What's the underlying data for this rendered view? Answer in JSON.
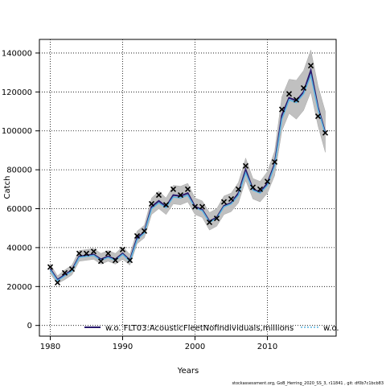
{
  "chart_data": {
    "type": "line",
    "title": "",
    "xlabel": "Years",
    "ylabel": "Catch",
    "xlim": [
      1978.5,
      2019.5
    ],
    "ylim": [
      -5500,
      147000
    ],
    "x_ticks": [
      1980,
      1990,
      2000,
      2010
    ],
    "y_ticks": [
      0,
      20000,
      40000,
      60000,
      80000,
      100000,
      120000,
      140000
    ],
    "grid": true,
    "legend_position": "bottom",
    "colors": {
      "band": "#c0c0c0",
      "fit_primary": "#2a1a6e",
      "fit_secondary": "#5ab4e0",
      "observed": "#000000"
    },
    "x": [
      1980,
      1981,
      1982,
      1983,
      1984,
      1985,
      1986,
      1987,
      1988,
      1989,
      1990,
      1991,
      1992,
      1993,
      1994,
      1995,
      1996,
      1997,
      1998,
      1999,
      2000,
      2001,
      2002,
      2003,
      2004,
      2005,
      2006,
      2007,
      2008,
      2009,
      2010,
      2011,
      2012,
      2013,
      2014,
      2015,
      2016,
      2017,
      2018
    ],
    "observed": [
      30000,
      22000,
      27000,
      29000,
      37000,
      37000,
      38000,
      33000,
      37000,
      33500,
      39000,
      33500,
      46000,
      48500,
      62500,
      67000,
      62000,
      70000,
      67000,
      70000,
      61000,
      61000,
      53000,
      55000,
      63500,
      65000,
      70000,
      82000,
      71000,
      70000,
      74000,
      84000,
      111000,
      119000,
      116000,
      122000,
      133500,
      107500,
      99000
    ],
    "series": [
      {
        "name": "w.o. FLT03:AcousticFleetNofindividuals,millions",
        "values": [
          29000,
          23500,
          26000,
          28500,
          35500,
          36000,
          36500,
          34000,
          35500,
          34000,
          37000,
          33500,
          45000,
          48000,
          61000,
          64000,
          61000,
          67000,
          66500,
          68000,
          61000,
          59500,
          53500,
          55500,
          61500,
          63000,
          68000,
          80000,
          70000,
          68500,
          73000,
          83000,
          108000,
          117000,
          115500,
          120000,
          131000,
          112000,
          99000
        ],
        "lower": [
          26500,
          21500,
          23500,
          26000,
          33000,
          33500,
          34000,
          31500,
          33000,
          31500,
          34000,
          31000,
          42000,
          45000,
          57000,
          60000,
          57000,
          62500,
          62000,
          63500,
          57000,
          55500,
          49000,
          51000,
          57000,
          58500,
          63000,
          74500,
          65000,
          63500,
          68000,
          77000,
          100000,
          109000,
          106000,
          110500,
          120000,
          102500,
          89000
        ],
        "upper": [
          31500,
          25500,
          28500,
          31000,
          38500,
          39000,
          39500,
          37000,
          38500,
          37000,
          40500,
          36500,
          48500,
          51500,
          65500,
          69000,
          65500,
          72000,
          71500,
          73000,
          65500,
          64000,
          58000,
          60000,
          66500,
          68000,
          73500,
          86000,
          75500,
          74000,
          79000,
          89500,
          117500,
          126500,
          126000,
          131000,
          141500,
          123000,
          110000
        ]
      },
      {
        "name": "w.o.",
        "values": [
          28500,
          23000,
          25500,
          28000,
          35000,
          35500,
          36000,
          33500,
          35000,
          33500,
          36500,
          33000,
          44000,
          47500,
          60000,
          63000,
          60500,
          66000,
          65500,
          67000,
          60500,
          59000,
          53000,
          55000,
          61000,
          62500,
          67000,
          78500,
          69500,
          68000,
          72000,
          82000,
          106000,
          116000,
          114500,
          119000,
          128500,
          111000,
          98500
        ]
      }
    ]
  },
  "footer": "stockassessment.org, GoB_Herring_2020_SS_3, r11841 , git: df0b7c1bcb83"
}
